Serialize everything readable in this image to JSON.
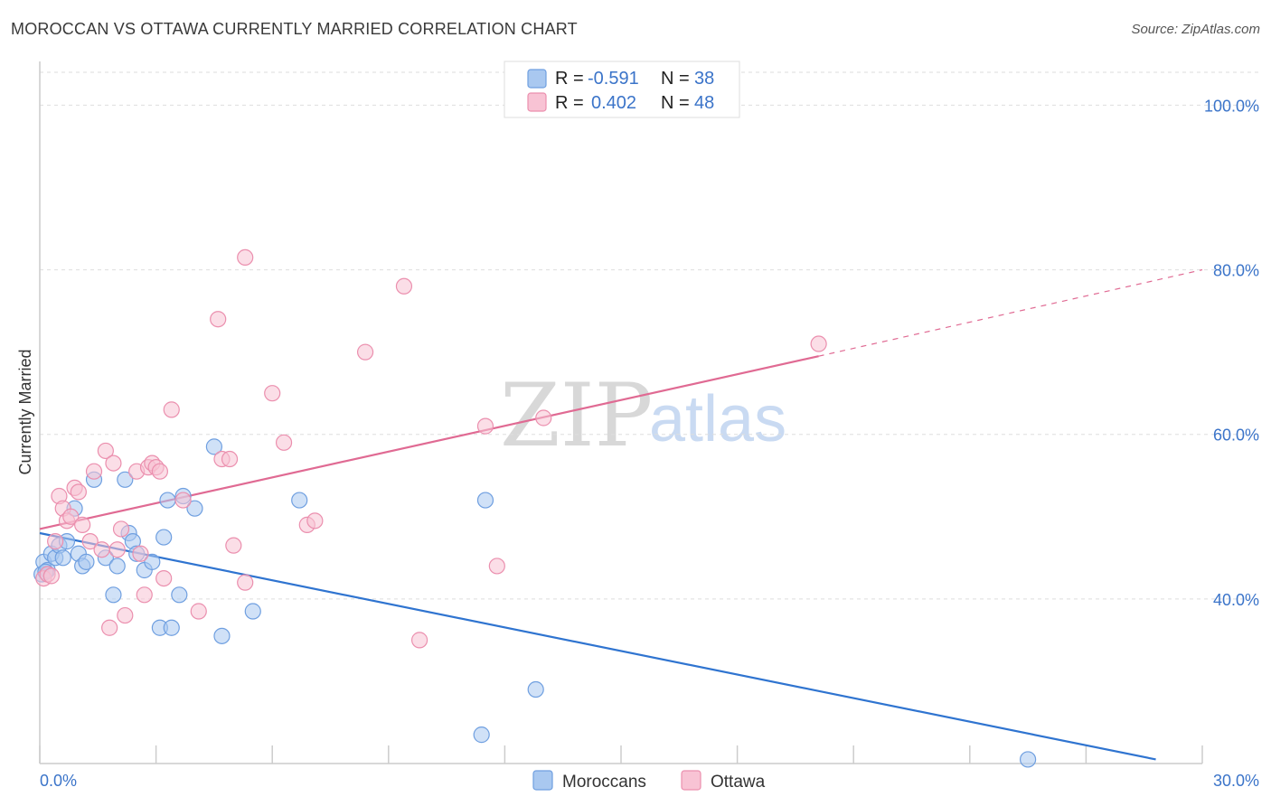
{
  "header": {
    "title": "MOROCCAN VS OTTAWA CURRENTLY MARRIED CORRELATION CHART",
    "source": "Source: ZipAtlas.com"
  },
  "watermark": {
    "zip": "ZIP",
    "atlas": "atlas"
  },
  "legend_box": {
    "rows": [
      {
        "r_label": "R =",
        "r_value": "-0.591",
        "n_label": "N =",
        "n_value": "38",
        "color": "#a9c8f0",
        "stroke": "#6f9fe0"
      },
      {
        "r_label": "R =",
        "r_value": "0.402",
        "n_label": "N =",
        "n_value": "48",
        "color": "#f8c3d4",
        "stroke": "#eb8fae"
      }
    ]
  },
  "bottom_legend": {
    "items": [
      {
        "label": "Moroccans",
        "color": "#a9c8f0",
        "stroke": "#6f9fe0"
      },
      {
        "label": "Ottawa",
        "color": "#f8c3d4",
        "stroke": "#eb8fae"
      }
    ]
  },
  "chart_data": {
    "type": "scatter",
    "title": "MOROCCAN VS OTTAWA CURRENTLY MARRIED CORRELATION CHART",
    "xlabel": "",
    "ylabel": "Currently Married",
    "xlim": [
      0,
      30
    ],
    "ylim": [
      20,
      104
    ],
    "x_tick_labels": [
      "0.0%",
      "30.0%"
    ],
    "y_ticks": [
      40,
      60,
      80,
      100
    ],
    "y_tick_labels": [
      "40.0%",
      "60.0%",
      "80.0%",
      "100.0%"
    ],
    "grid": true,
    "series": [
      {
        "name": "Moroccans",
        "color": "#6f9fe0",
        "fill": "#a9c8f0",
        "trend_color": "#2f74d0",
        "points": [
          [
            0.05,
            43.0
          ],
          [
            0.1,
            44.5
          ],
          [
            0.2,
            43.5
          ],
          [
            0.3,
            45.5
          ],
          [
            0.4,
            45.0
          ],
          [
            0.5,
            46.5
          ],
          [
            0.6,
            45.0
          ],
          [
            0.7,
            47.0
          ],
          [
            0.9,
            51.0
          ],
          [
            1.0,
            45.5
          ],
          [
            1.1,
            44.0
          ],
          [
            1.2,
            44.5
          ],
          [
            1.4,
            54.5
          ],
          [
            1.7,
            45.0
          ],
          [
            1.9,
            40.5
          ],
          [
            2.0,
            44.0
          ],
          [
            2.2,
            54.5
          ],
          [
            2.3,
            48.0
          ],
          [
            2.4,
            47.0
          ],
          [
            2.5,
            45.5
          ],
          [
            2.7,
            43.5
          ],
          [
            2.9,
            44.5
          ],
          [
            3.1,
            36.5
          ],
          [
            3.2,
            47.5
          ],
          [
            3.3,
            52.0
          ],
          [
            3.4,
            36.5
          ],
          [
            3.6,
            40.5
          ],
          [
            3.7,
            52.5
          ],
          [
            4.0,
            51.0
          ],
          [
            4.5,
            58.5
          ],
          [
            4.7,
            35.5
          ],
          [
            5.5,
            38.5
          ],
          [
            6.7,
            52.0
          ],
          [
            11.4,
            23.5
          ],
          [
            11.5,
            52.0
          ],
          [
            12.8,
            29.0
          ],
          [
            25.5,
            20.5
          ],
          [
            0.15,
            43.3
          ]
        ],
        "trend": {
          "x0": 0,
          "y0": 48.0,
          "x1": 28.8,
          "y1": 20.5
        }
      },
      {
        "name": "Ottawa",
        "color": "#eb8fae",
        "fill": "#f8c3d4",
        "trend_color": "#e06a93",
        "points": [
          [
            0.1,
            42.5
          ],
          [
            0.2,
            43.0
          ],
          [
            0.4,
            47.0
          ],
          [
            0.5,
            52.5
          ],
          [
            0.6,
            51.0
          ],
          [
            0.7,
            49.5
          ],
          [
            0.8,
            50.0
          ],
          [
            0.9,
            53.5
          ],
          [
            1.0,
            53.0
          ],
          [
            1.1,
            49.0
          ],
          [
            1.3,
            47.0
          ],
          [
            1.4,
            55.5
          ],
          [
            1.6,
            46.0
          ],
          [
            1.7,
            58.0
          ],
          [
            1.8,
            36.5
          ],
          [
            1.9,
            56.5
          ],
          [
            2.0,
            46.0
          ],
          [
            2.1,
            48.5
          ],
          [
            2.2,
            38.0
          ],
          [
            2.5,
            55.5
          ],
          [
            2.6,
            45.5
          ],
          [
            2.7,
            40.5
          ],
          [
            2.8,
            56.0
          ],
          [
            2.9,
            56.5
          ],
          [
            3.0,
            56.0
          ],
          [
            3.1,
            55.5
          ],
          [
            3.2,
            42.5
          ],
          [
            3.4,
            63.0
          ],
          [
            3.7,
            52.0
          ],
          [
            4.1,
            38.5
          ],
          [
            4.6,
            74.0
          ],
          [
            4.7,
            57.0
          ],
          [
            4.9,
            57.0
          ],
          [
            5.0,
            46.5
          ],
          [
            5.3,
            81.5
          ],
          [
            5.3,
            42.0
          ],
          [
            6.0,
            65.0
          ],
          [
            6.3,
            59.0
          ],
          [
            6.9,
            49.0
          ],
          [
            7.1,
            49.5
          ],
          [
            8.4,
            70.0
          ],
          [
            9.4,
            78.0
          ],
          [
            9.8,
            35.0
          ],
          [
            11.5,
            61.0
          ],
          [
            11.8,
            44.0
          ],
          [
            13.0,
            62.0
          ],
          [
            20.1,
            71.0
          ],
          [
            0.3,
            42.8
          ]
        ],
        "trend": {
          "x0": 0,
          "y0": 48.5,
          "x1": 20.1,
          "y1": 69.5
        },
        "trend_dashed": {
          "x0": 20.1,
          "y0": 69.5,
          "x1": 30,
          "y1": 80.0
        }
      }
    ]
  }
}
